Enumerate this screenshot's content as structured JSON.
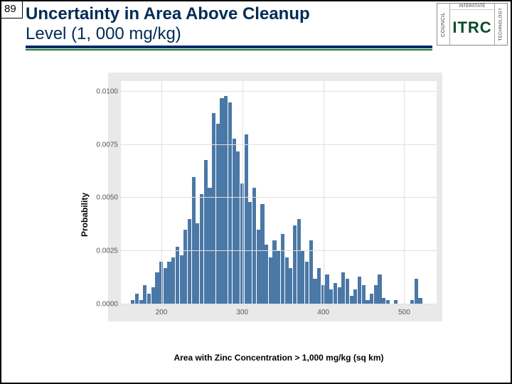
{
  "slide_number": "89",
  "title_line1": "Uncertainty in Area Above Cleanup",
  "title_line2": "Level (1, 000 mg/kg)",
  "logo": {
    "left_text": "COUNCIL",
    "top_text": "INTERSTATE",
    "main": "ITRC",
    "right_text": "TECHNOLOGY",
    "corner": "REGULATORY"
  },
  "chart": {
    "type": "histogram",
    "xlabel": "Area with Zinc Concentration > 1,000 mg/kg (sq km)",
    "ylabel": "Probability",
    "xlim": [
      150,
      540
    ],
    "ylim": [
      0,
      0.0105
    ],
    "xticks": [
      200,
      300,
      400,
      500
    ],
    "yticks": [
      0.0,
      0.0025,
      0.005,
      0.0075,
      0.01
    ],
    "ytick_labels": [
      "0.0000",
      "0.0025",
      "0.0050",
      "0.0075",
      "0.0100"
    ],
    "bin_width": 5,
    "bar_color": "#4a78a7",
    "plot_bg": "#ffffff",
    "panel_bg": "#e9e9e9",
    "grid_color": "#e0e0e0",
    "title_fontsize": 24,
    "label_fontsize": 12,
    "tick_fontsize": 10,
    "bins": [
      {
        "x": 165,
        "p": 0.0002
      },
      {
        "x": 170,
        "p": 0.0005
      },
      {
        "x": 175,
        "p": 0.0002
      },
      {
        "x": 180,
        "p": 0.0009
      },
      {
        "x": 185,
        "p": 0.0005
      },
      {
        "x": 190,
        "p": 0.0008
      },
      {
        "x": 195,
        "p": 0.0015
      },
      {
        "x": 200,
        "p": 0.002
      },
      {
        "x": 205,
        "p": 0.0017
      },
      {
        "x": 210,
        "p": 0.002
      },
      {
        "x": 215,
        "p": 0.0022
      },
      {
        "x": 220,
        "p": 0.0027
      },
      {
        "x": 225,
        "p": 0.0023
      },
      {
        "x": 230,
        "p": 0.0035
      },
      {
        "x": 235,
        "p": 0.004
      },
      {
        "x": 240,
        "p": 0.006
      },
      {
        "x": 245,
        "p": 0.0038
      },
      {
        "x": 250,
        "p": 0.0052
      },
      {
        "x": 255,
        "p": 0.0068
      },
      {
        "x": 260,
        "p": 0.0055
      },
      {
        "x": 265,
        "p": 0.009
      },
      {
        "x": 270,
        "p": 0.0085
      },
      {
        "x": 275,
        "p": 0.0097
      },
      {
        "x": 280,
        "p": 0.0098
      },
      {
        "x": 285,
        "p": 0.0095
      },
      {
        "x": 290,
        "p": 0.0078
      },
      {
        "x": 295,
        "p": 0.0072
      },
      {
        "x": 300,
        "p": 0.0057
      },
      {
        "x": 305,
        "p": 0.008
      },
      {
        "x": 310,
        "p": 0.0048
      },
      {
        "x": 315,
        "p": 0.0055
      },
      {
        "x": 320,
        "p": 0.0035
      },
      {
        "x": 325,
        "p": 0.0047
      },
      {
        "x": 330,
        "p": 0.0028
      },
      {
        "x": 335,
        "p": 0.0022
      },
      {
        "x": 340,
        "p": 0.003
      },
      {
        "x": 345,
        "p": 0.0025
      },
      {
        "x": 350,
        "p": 0.0033
      },
      {
        "x": 355,
        "p": 0.0022
      },
      {
        "x": 360,
        "p": 0.0017
      },
      {
        "x": 365,
        "p": 0.0037
      },
      {
        "x": 370,
        "p": 0.004
      },
      {
        "x": 375,
        "p": 0.0025
      },
      {
        "x": 380,
        "p": 0.002
      },
      {
        "x": 385,
        "p": 0.003
      },
      {
        "x": 390,
        "p": 0.0012
      },
      {
        "x": 395,
        "p": 0.0017
      },
      {
        "x": 400,
        "p": 0.0009
      },
      {
        "x": 405,
        "p": 0.0014
      },
      {
        "x": 410,
        "p": 0.0007
      },
      {
        "x": 415,
        "p": 0.001
      },
      {
        "x": 420,
        "p": 0.0008
      },
      {
        "x": 425,
        "p": 0.0015
      },
      {
        "x": 430,
        "p": 0.0012
      },
      {
        "x": 435,
        "p": 0.0004
      },
      {
        "x": 440,
        "p": 0.0007
      },
      {
        "x": 445,
        "p": 0.0013
      },
      {
        "x": 450,
        "p": 0.0009
      },
      {
        "x": 455,
        "p": 0.0002
      },
      {
        "x": 460,
        "p": 0.0005
      },
      {
        "x": 465,
        "p": 0.0009
      },
      {
        "x": 470,
        "p": 0.0014
      },
      {
        "x": 475,
        "p": 0.0003
      },
      {
        "x": 480,
        "p": 0.0002
      },
      {
        "x": 490,
        "p": 0.0002
      },
      {
        "x": 510,
        "p": 0.0002
      },
      {
        "x": 515,
        "p": 0.0012
      },
      {
        "x": 520,
        "p": 0.0003
      }
    ]
  }
}
